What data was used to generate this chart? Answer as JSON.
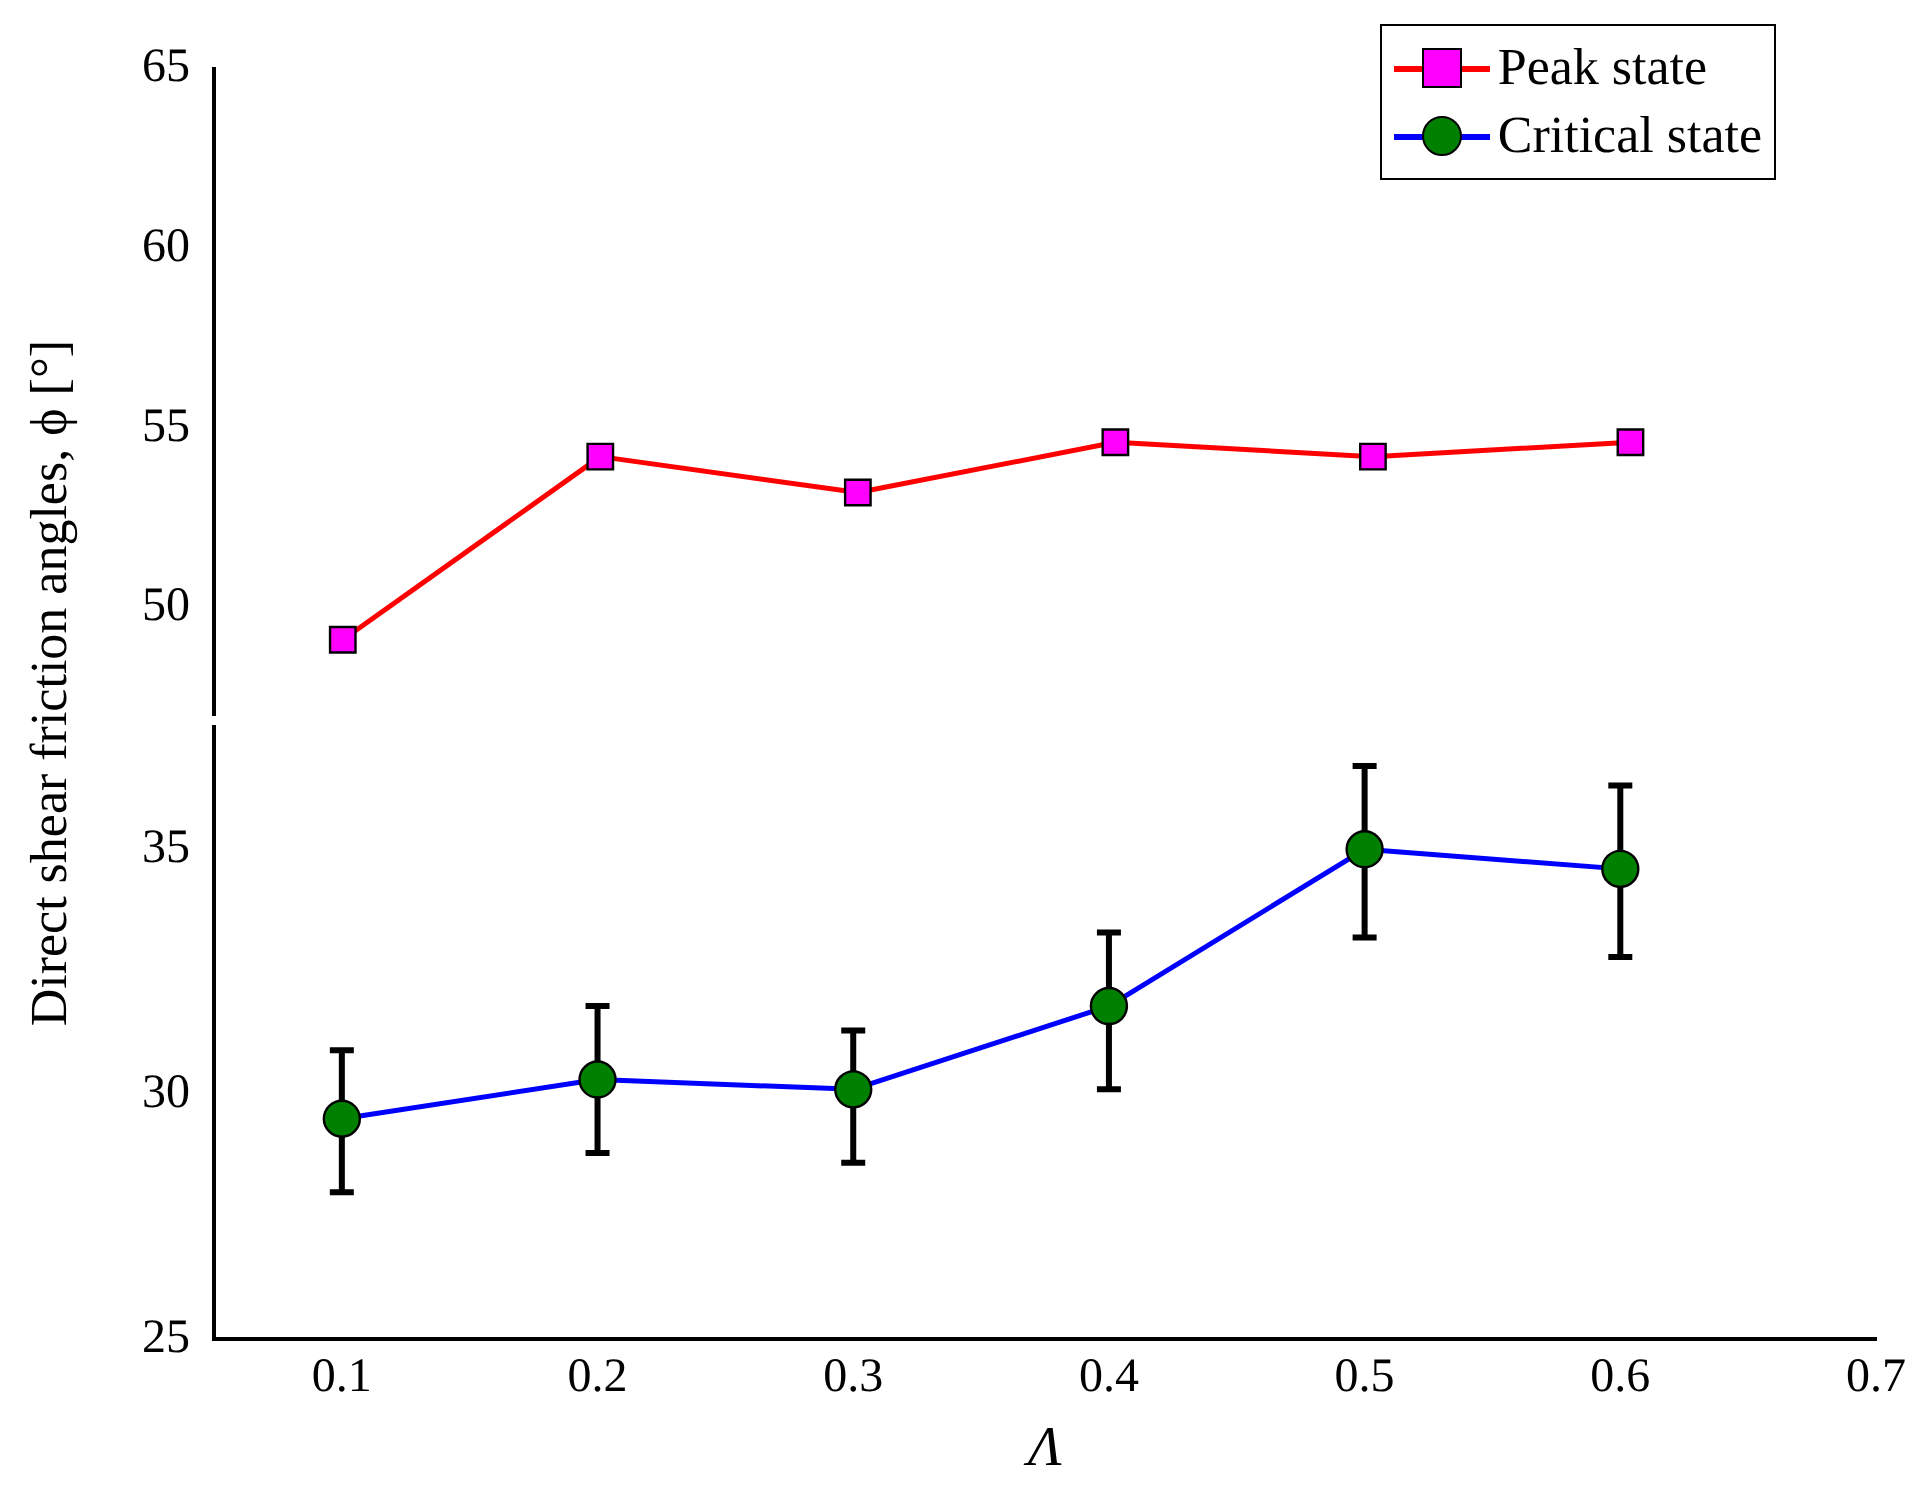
{
  "chart_data": [
    {
      "type": "line",
      "x": [
        0.1,
        0.2,
        0.3,
        0.4,
        0.5,
        0.6
      ],
      "xlim": [
        0.05,
        0.7
      ],
      "ylim": [
        47,
        65
      ],
      "yticks": [
        50,
        55,
        60,
        65
      ],
      "tick_labels": "y",
      "grid": false,
      "legend": "top right",
      "line_style": "solid",
      "series": [
        {
          "name": "Peak state",
          "color": "#ff0000",
          "marker": "square",
          "values": [
            49.1,
            54.2,
            53.2,
            54.6,
            54.2,
            54.6
          ]
        }
      ]
    },
    {
      "type": "line",
      "x": [
        0.1,
        0.2,
        0.3,
        0.4,
        0.5,
        0.6
      ],
      "xlabel": "Λ",
      "ylabel": "Direct shear friction angles, ϕ [°]",
      "xlim": [
        0.05,
        0.7
      ],
      "xticks": [
        0.1,
        0.2,
        0.3,
        0.4,
        0.5,
        0.6,
        0.7
      ],
      "ylim": [
        25,
        37.5
      ],
      "yticks": [
        25,
        30,
        35
      ],
      "grid": false,
      "legend": "top right",
      "line_style": "solid",
      "series": [
        {
          "name": "Critical state",
          "color": "#0000ff",
          "marker": "circle",
          "values": [
            29.5,
            30.3,
            30.1,
            31.8,
            35.0,
            34.6
          ],
          "errors": [
            [
              28.0,
              30.9
            ],
            [
              28.8,
              31.8
            ],
            [
              28.6,
              31.3
            ],
            [
              30.1,
              33.3
            ],
            [
              33.2,
              36.7
            ],
            [
              32.8,
              36.3
            ]
          ]
        }
      ]
    }
  ]
}
